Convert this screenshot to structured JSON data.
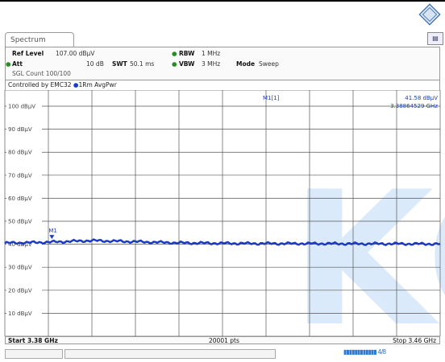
{
  "tab": {
    "label": "Spectrum"
  },
  "header": {
    "ref_level_label": "Ref Level",
    "ref_level_value": "107.00 dBµV",
    "att_label": "Att",
    "att_value": "10 dB",
    "swt_label": "SWT",
    "swt_value": "50.1 ms",
    "rbw_label": "RBW",
    "rbw_value": "1 MHz",
    "vbw_label": "VBW",
    "vbw_value": "3 MHz",
    "mode_label": "Mode",
    "mode_value": "Sweep",
    "sgl_count": "SGL Count 100/100"
  },
  "control": {
    "prefix": "Controlled by EMC32",
    "trace": "1Rm AvgPwr"
  },
  "marker": {
    "id": "M1[1]",
    "level": "41.58 dBµV",
    "freq": "3.38864529 GHz",
    "label": "M1"
  },
  "footer": {
    "start": "Start 3.38 GHz",
    "points": "20001 pts",
    "stop": "Stop 3.46 GHz"
  },
  "status": {
    "text": "▮▮▮▮▮▮▮▮▮▮▮▮ 4/8"
  },
  "watermark": "KC",
  "chart_data": {
    "type": "line",
    "title": "",
    "xlabel": "",
    "ylabel": "",
    "ylim": [
      0,
      107
    ],
    "y_ticks": [
      "100 dBµV",
      "90 dBµV",
      "80 dBµV",
      "70 dBµV",
      "60 dBµV",
      "50 dBµV",
      "40 dBµV",
      "30 dBµV",
      "20 dBµV",
      "10 dBµV"
    ],
    "y_tick_values": [
      100,
      90,
      80,
      70,
      60,
      50,
      40,
      30,
      20,
      10
    ],
    "x_range_ghz": [
      3.38,
      3.46
    ],
    "grid": true,
    "trace_color": "#1a3cc4",
    "series": [
      {
        "name": "1Rm AvgPwr",
        "x": [
          3.38,
          3.388,
          3.396,
          3.404,
          3.412,
          3.42,
          3.428,
          3.436,
          3.444,
          3.452,
          3.46
        ],
        "values": [
          40.5,
          40.9,
          41.6,
          41.1,
          40.6,
          40.4,
          40.3,
          40.3,
          40.2,
          40.2,
          40.1
        ]
      }
    ],
    "marker": {
      "x": 3.38864529,
      "y": 41.58
    }
  }
}
